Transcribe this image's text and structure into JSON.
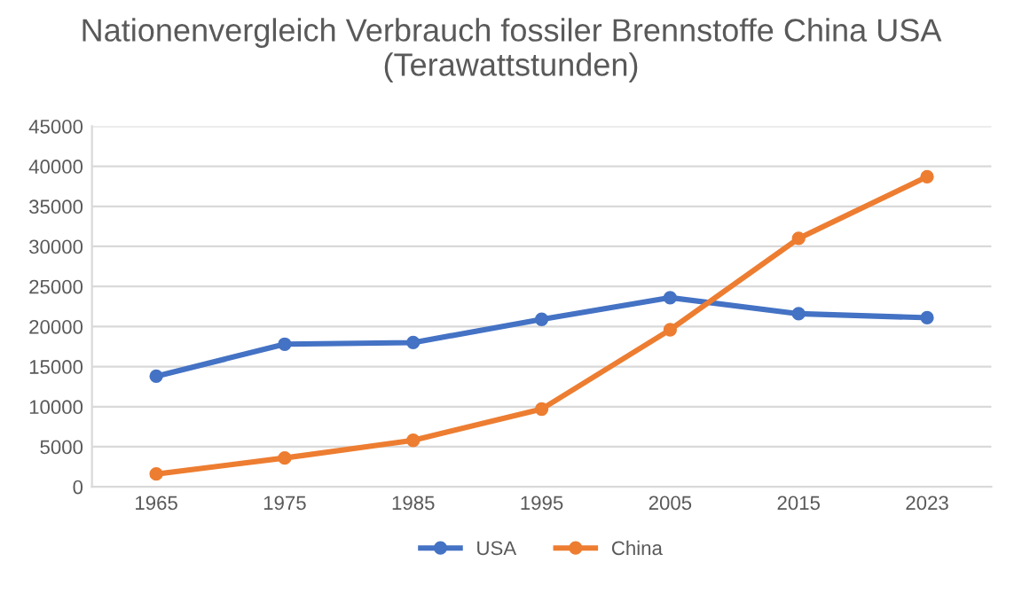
{
  "chart_data": {
    "type": "line",
    "title": "Nationenvergleich Verbrauch fossiler Brennstoffe China USA (Terawattstunden)",
    "categories": [
      "1965",
      "1975",
      "1985",
      "1995",
      "2005",
      "2015",
      "2023"
    ],
    "series": [
      {
        "name": "USA",
        "color": "#4472c4",
        "values": [
          13800,
          17800,
          18000,
          20900,
          23600,
          21600,
          21100
        ]
      },
      {
        "name": "China",
        "color": "#ed7d31",
        "values": [
          1600,
          3600,
          5800,
          9700,
          19600,
          31000,
          38700
        ]
      }
    ],
    "ylim": [
      0,
      45000
    ],
    "yticks": [
      0,
      5000,
      10000,
      15000,
      20000,
      25000,
      30000,
      35000,
      40000,
      45000
    ],
    "grid": "y",
    "legend": "bottom",
    "marker": "circle",
    "line_style": "solid"
  }
}
